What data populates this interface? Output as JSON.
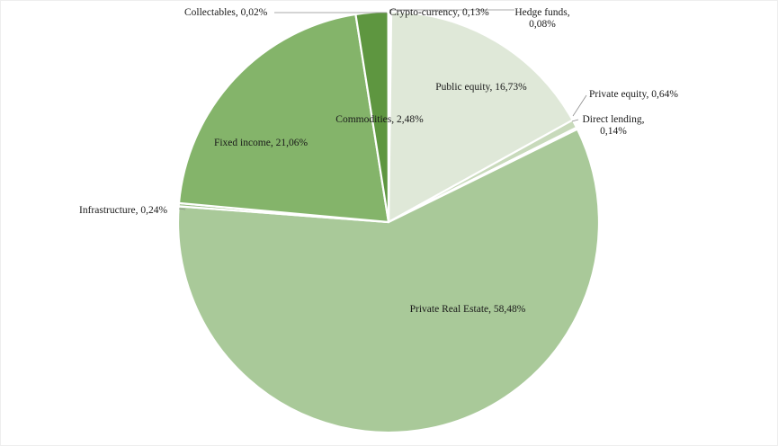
{
  "chart_data": {
    "type": "pie",
    "start_angle_deg": 0,
    "direction": "clockwise",
    "slices": [
      {
        "label": "Crypto-currency",
        "value": 0.13,
        "value_text": "0,13%",
        "color": "#d8e4cf"
      },
      {
        "label": "Hedge funds",
        "value": 0.08,
        "value_text": "0,08%",
        "color": "#d8e4cf"
      },
      {
        "label": "Public equity",
        "value": 16.73,
        "value_text": "16,73%",
        "color": "#dfe8d8"
      },
      {
        "label": "Private equity",
        "value": 0.64,
        "value_text": "0,64%",
        "color": "#c8dabb"
      },
      {
        "label": "Direct lending",
        "value": 0.14,
        "value_text": "0,14%",
        "color": "#bed3ae"
      },
      {
        "label": "Private Real Estate",
        "value": 58.48,
        "value_text": "58,48%",
        "color": "#a9c999"
      },
      {
        "label": "Infrastructure",
        "value": 0.24,
        "value_text": "0,24%",
        "color": "#98bd83"
      },
      {
        "label": "Fixed income",
        "value": 21.06,
        "value_text": "21,06%",
        "color": "#84b46a"
      },
      {
        "label": "Commodities",
        "value": 2.48,
        "value_text": "2,48%",
        "color": "#5e9640"
      },
      {
        "label": "Collectables",
        "value": 0.02,
        "value_text": "0,02%",
        "color": "#4e8434"
      }
    ],
    "title": "",
    "legend": "none",
    "data_labels": "category-name, value"
  }
}
